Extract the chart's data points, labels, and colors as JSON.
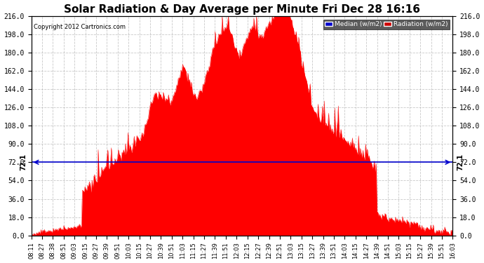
{
  "title": "Solar Radiation & Day Average per Minute Fri Dec 28 16:16",
  "copyright": "Copyright 2012 Cartronics.com",
  "median_value": 72.1,
  "ylim": [
    0,
    216
  ],
  "yticks": [
    0.0,
    18.0,
    36.0,
    54.0,
    72.0,
    90.0,
    108.0,
    126.0,
    144.0,
    162.0,
    180.0,
    198.0,
    216.0
  ],
  "bar_color": "#FF0000",
  "median_color": "#0000CC",
  "background_color": "#FFFFFF",
  "plot_bg_color": "#FFFFFF",
  "grid_color": "#BBBBBB",
  "title_fontsize": 11,
  "legend_median_color": "#0000CC",
  "legend_radiation_color": "#CC0000",
  "x_labels": [
    "08:11",
    "08:27",
    "08:38",
    "08:51",
    "09:03",
    "09:15",
    "09:27",
    "09:39",
    "09:51",
    "10:03",
    "10:15",
    "10:27",
    "10:39",
    "10:51",
    "11:03",
    "11:15",
    "11:27",
    "11:39",
    "11:51",
    "12:03",
    "12:15",
    "12:27",
    "12:39",
    "12:51",
    "13:03",
    "13:15",
    "13:27",
    "13:39",
    "13:51",
    "14:03",
    "14:15",
    "14:27",
    "14:39",
    "14:51",
    "15:03",
    "15:15",
    "15:27",
    "15:39",
    "15:51",
    "16:03"
  ]
}
